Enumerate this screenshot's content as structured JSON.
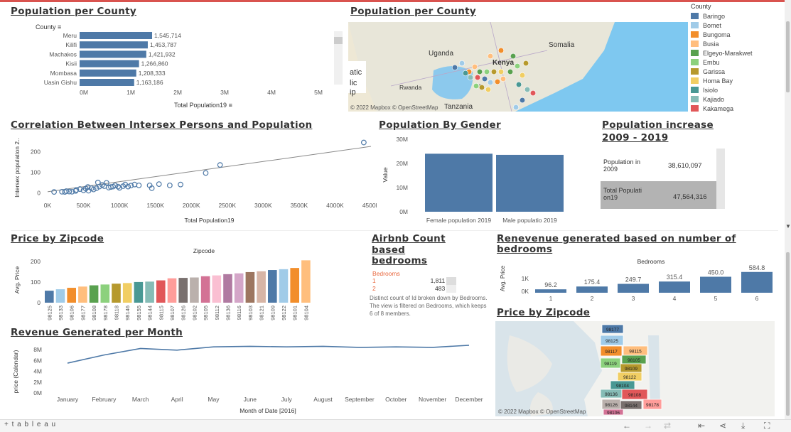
{
  "titles": {
    "pop_bar": "Population per  County",
    "pop_map": "Population per  County",
    "scatter": "Correlation Between Intersex Persons and Population",
    "gender": "Population By Gender",
    "increase_l1": "Population increase",
    "increase_l2": "2009 - 2019",
    "zip_bar": "Price by Zipcode",
    "airbnb_l1": "Airbnb Count",
    "airbnb_l2": "based",
    "airbnb_l3": "bedrooms",
    "rev_bed_l1": "Renevenue generated based on number of",
    "rev_bed_l2": "bedrooms",
    "rev_month": "Revenue Generated per Month",
    "zip_map": "Price by Zipcode"
  },
  "pop_bar": {
    "header": "County",
    "xlabel": "Total Population19",
    "ticks": [
      "0M",
      "1M",
      "2M",
      "3M",
      "4M",
      "5M"
    ]
  },
  "chart_data": [
    {
      "type": "bar",
      "title": "Population per  County",
      "categories": [
        "Meru",
        "Kilifi",
        "Machakos",
        "Kisii",
        "Mombasa",
        "Uasin Gishu"
      ],
      "values": [
        1545714,
        1453787,
        1421932,
        1266860,
        1208333,
        1163186
      ],
      "labels": [
        "1,545,714",
        "1,453,787",
        "1,421,932",
        "1,266,860",
        "1,208,333",
        "1,163,186"
      ],
      "xlabel": "Total Population19",
      "xlim": [
        0,
        5000000
      ]
    },
    {
      "type": "scatter",
      "title": "Correlation Between Intersex Persons and Population",
      "xlabel": "Total Population19",
      "ylabel": "Intersex population 2..",
      "xlim": [
        0,
        4500000
      ],
      "ylim": [
        -30,
        270
      ],
      "xticks": [
        "0K",
        "500K",
        "1000K",
        "1500K",
        "2000K",
        "2500K",
        "3000K",
        "3500K",
        "4000K",
        "4500K"
      ],
      "yticks": [
        "0",
        "100",
        "200"
      ],
      "points": [
        [
          90000,
          4
        ],
        [
          200000,
          5
        ],
        [
          240000,
          4
        ],
        [
          260000,
          8
        ],
        [
          300000,
          6
        ],
        [
          340000,
          5
        ],
        [
          390000,
          9
        ],
        [
          400000,
          14
        ],
        [
          450000,
          18
        ],
        [
          500000,
          12
        ],
        [
          530000,
          20
        ],
        [
          560000,
          28
        ],
        [
          570000,
          10
        ],
        [
          610000,
          22
        ],
        [
          640000,
          16
        ],
        [
          680000,
          22
        ],
        [
          700000,
          50
        ],
        [
          720000,
          30
        ],
        [
          760000,
          38
        ],
        [
          790000,
          32
        ],
        [
          820000,
          48
        ],
        [
          850000,
          25
        ],
        [
          880000,
          28
        ],
        [
          910000,
          30
        ],
        [
          940000,
          36
        ],
        [
          980000,
          30
        ],
        [
          1000000,
          24
        ],
        [
          1050000,
          32
        ],
        [
          1080000,
          40
        ],
        [
          1120000,
          30
        ],
        [
          1160000,
          35
        ],
        [
          1210000,
          40
        ],
        [
          1270000,
          36
        ],
        [
          1420000,
          36
        ],
        [
          1450000,
          22
        ],
        [
          1550000,
          42
        ],
        [
          1700000,
          36
        ],
        [
          1850000,
          40
        ],
        [
          2200000,
          96
        ],
        [
          2400000,
          135
        ],
        [
          4400000,
          244
        ]
      ],
      "trend": [
        [
          0,
          5
        ],
        [
          4500000,
          225
        ]
      ]
    },
    {
      "type": "bar",
      "title": "Population By Gender",
      "categories": [
        "Female population 2019",
        "Male populatio 2019"
      ],
      "values": [
        24014716,
        23548056
      ],
      "ylabel": "Value",
      "ylim": [
        0,
        30000000
      ],
      "yticks": [
        "0M",
        "10M",
        "20M",
        "30M"
      ]
    },
    {
      "type": "bar",
      "title": "Price by Zipcode",
      "xlabel": "Zipcode",
      "ylabel": "Avg. Price",
      "ylim": [
        0,
        220
      ],
      "yticks": [
        "0",
        "100",
        "200"
      ],
      "categories": [
        "98125",
        "98133",
        "98106",
        "98177",
        "98108",
        "98178",
        "98118",
        "98146",
        "98155",
        "98144",
        "98115",
        "98107",
        "98126",
        "98102",
        "98105",
        "98112",
        "98136",
        "98116",
        "98103",
        "98121",
        "98109",
        "98122",
        "98101",
        "98104"
      ],
      "values": [
        58,
        65,
        72,
        78,
        84,
        88,
        92,
        95,
        100,
        102,
        108,
        118,
        120,
        122,
        128,
        132,
        138,
        142,
        148,
        152,
        158,
        162,
        168,
        205
      ],
      "colors": [
        "#4e79a7",
        "#a0cbe8",
        "#f28e2b",
        "#ffbe7d",
        "#59a14f",
        "#8cd17d",
        "#b6992d",
        "#f1ce63",
        "#499894",
        "#86bcb6",
        "#e15759",
        "#ff9d9a",
        "#79706e",
        "#bab0ac",
        "#d37295",
        "#fabfd2",
        "#b07aa1",
        "#d4a6c8",
        "#9d7660",
        "#d7b5a6",
        "#4e79a7",
        "#a0cbe8",
        "#f28e2b",
        "#ffbe7d"
      ]
    },
    {
      "type": "bar",
      "title": "Renevenue generated based on number of bedrooms",
      "xlabel": "Bedrooms",
      "ylabel": "Avg. Price",
      "categories": [
        "1",
        "2",
        "3",
        "4",
        "5",
        "6"
      ],
      "values": [
        96.2,
        175.4,
        249.7,
        315.4,
        450.0,
        584.8
      ],
      "labels": [
        "96.2",
        "175.4",
        "249.7",
        "315.4",
        "450.0",
        "584.8"
      ],
      "yticks": [
        "0K",
        "1K"
      ]
    },
    {
      "type": "line",
      "title": "Revenue Generated per Month",
      "xlabel": "Month of Date [2016]",
      "ylabel": "price (Calendar)",
      "categories": [
        "January",
        "February",
        "March",
        "April",
        "May",
        "June",
        "July",
        "August",
        "September",
        "October",
        "November",
        "December"
      ],
      "values": [
        5500000,
        7000000,
        8200000,
        7900000,
        8500000,
        8600000,
        8500000,
        8600000,
        8400000,
        8500000,
        8400000,
        9000000
      ],
      "ylim": [
        0,
        8000000
      ],
      "yticks": [
        "0M",
        "2M",
        "4M",
        "6M",
        "8M"
      ]
    }
  ],
  "legend": {
    "header": "County",
    "items": [
      {
        "name": "Baringo",
        "color": "#4e79a7"
      },
      {
        "name": "Bomet",
        "color": "#a0cbe8"
      },
      {
        "name": "Bungoma",
        "color": "#f28e2b"
      },
      {
        "name": "Busia",
        "color": "#ffbe7d"
      },
      {
        "name": "Elgeyo-Marakwet",
        "color": "#59a14f"
      },
      {
        "name": "Embu",
        "color": "#8cd17d"
      },
      {
        "name": "Garissa",
        "color": "#b6992d"
      },
      {
        "name": "Homa Bay",
        "color": "#f1ce63"
      },
      {
        "name": "Isiolo",
        "color": "#499894"
      },
      {
        "name": "Kajiado",
        "color": "#86bcb6"
      },
      {
        "name": "Kakamega",
        "color": "#e15759"
      }
    ]
  },
  "map1": {
    "labels": [
      "Uganda",
      "Kenya",
      "Somalia",
      "atic",
      "lic",
      "ip",
      "Rwanda",
      "Tanzania",
      "Na"
    ],
    "credit": "© 2022 Mapbox  © OpenStreetMap"
  },
  "map2": {
    "zips": [
      "98177",
      "98125",
      "98117",
      "98115",
      "98105",
      "98119",
      "98109",
      "98122",
      "98104",
      "98136",
      "98108",
      "98178",
      "98144",
      "98126",
      "98106"
    ],
    "credit": "© 2022 Mapbox  © OpenStreetMap"
  },
  "increase": {
    "row1_label": "Population in 2009",
    "row1_value": "38,610,097",
    "row2_label": "Total Population19",
    "row2_value": "47,564,316"
  },
  "airbnb": {
    "header": "Bedrooms",
    "rows": [
      {
        "k": "1",
        "v": "1,811"
      },
      {
        "k": "2",
        "v": "483"
      }
    ],
    "note": "Distinct count of Id broken down by Bedrooms. The view is filtered on Bedrooms, which keeps 6 of 8 members."
  },
  "footer": {
    "brand": "+ t a b l e a u"
  }
}
